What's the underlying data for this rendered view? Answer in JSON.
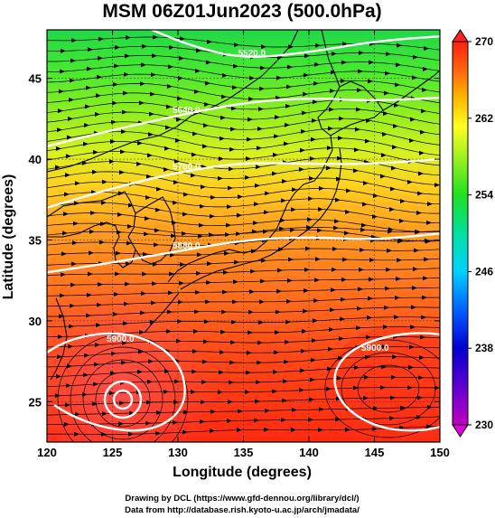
{
  "title": "MSM 06Z01Jun2023 (500.0hPa)",
  "x_axis": {
    "label": "Longitude (degrees)",
    "ticks": [
      "120",
      "125",
      "130",
      "135",
      "140",
      "145",
      "150"
    ],
    "range": [
      120,
      150
    ]
  },
  "y_axis": {
    "label": "Latitude  (degrees)",
    "ticks": [
      "25",
      "30",
      "35",
      "40",
      "45"
    ],
    "range": [
      22.5,
      48
    ]
  },
  "colorbar": {
    "ticks": [
      "230",
      "238",
      "246",
      "254",
      "262",
      "270"
    ],
    "range": [
      230,
      270
    ]
  },
  "contours": [
    {
      "label": "5880.0",
      "lat_at": [
        [
          120,
          33.0
        ],
        [
          125,
          33.6
        ],
        [
          130,
          34.3
        ],
        [
          135,
          35.0
        ],
        [
          140,
          35.2
        ],
        [
          145,
          35.0
        ],
        [
          150,
          35.4
        ]
      ]
    },
    {
      "label": "5760.0",
      "lat_at": [
        [
          120,
          37.0
        ],
        [
          125,
          38.2
        ],
        [
          130,
          39.2
        ],
        [
          135,
          39.8
        ],
        [
          140,
          39.7
        ],
        [
          145,
          39.7
        ],
        [
          150,
          40.0
        ]
      ]
    },
    {
      "label": "5640.0",
      "lat_at": [
        [
          120,
          40.8
        ],
        [
          125,
          41.8
        ],
        [
          130,
          42.7
        ],
        [
          135,
          43.5
        ],
        [
          140,
          43.8
        ],
        [
          145,
          43.6
        ],
        [
          150,
          43.8
        ]
      ]
    },
    {
      "label": "5520.0",
      "lat_at": [
        [
          128,
          48.0
        ],
        [
          131,
          47.0
        ],
        [
          135,
          46.2
        ],
        [
          140,
          46.6
        ],
        [
          145,
          47.3
        ],
        [
          150,
          47.6
        ]
      ]
    },
    {
      "label": "5900.0",
      "lat_at": []
    },
    {
      "label": "5900.0",
      "lat_at": []
    }
  ],
  "credits": {
    "line1": "Drawing by DCL (https://www.gfd-dennou.org/library/dcl/)",
    "line2": "Data from http://database.rish.kyoto-u.ac.jp/arch/jmadata/"
  },
  "colors": {
    "warm": "#ff4020",
    "mid": "#ffb000",
    "cool": "#40ff40"
  }
}
